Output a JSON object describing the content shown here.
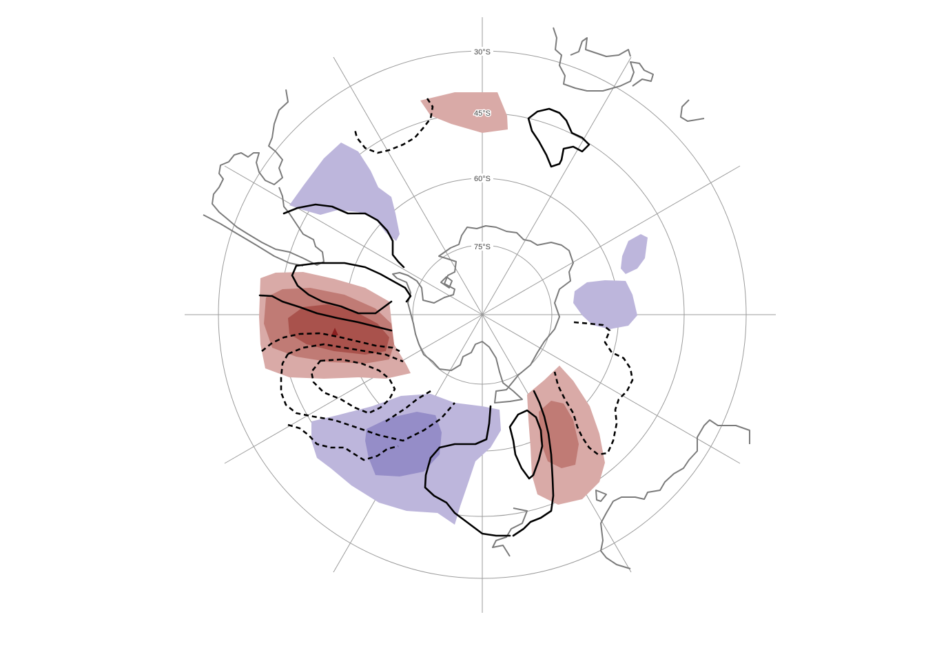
{
  "map": {
    "projection": "south-polar-stereographic",
    "latitude_labels": [
      "30°S",
      "45°S",
      "60°S",
      "75°S"
    ],
    "colors": {
      "positive_1": "#d9aaa7",
      "positive_2": "#c07b75",
      "positive_3": "#a9524c",
      "positive_4": "#8b2020",
      "negative_1": "#bdb6dc",
      "negative_2": "#958dc8",
      "contour": "#000000",
      "coastline": "#7a7a7a",
      "graticule": "#9a9a9a"
    },
    "contours": {
      "positive_style": "solid",
      "negative_style": "dashed"
    }
  }
}
